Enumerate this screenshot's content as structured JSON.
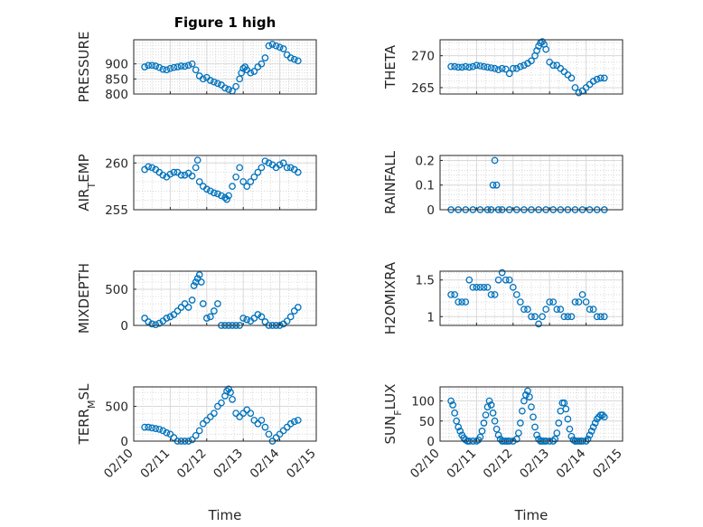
{
  "title": "Figure 1 high",
  "x_label": "Time",
  "x_tick_labels": [
    "02/10",
    "02/11",
    "02/12",
    "02/13",
    "02/14",
    "02/15"
  ],
  "marker_color": "#0072BD",
  "chart_data": [
    {
      "type": "scatter",
      "ylabel": "PRESSURE",
      "ylim": [
        800,
        980
      ],
      "yticks": [
        800,
        850,
        900
      ],
      "x": [
        0.3,
        0.4,
        0.5,
        0.6,
        0.7,
        0.8,
        0.9,
        1.0,
        1.1,
        1.2,
        1.3,
        1.4,
        1.5,
        1.6,
        1.7,
        1.8,
        1.9,
        2.0,
        2.1,
        2.2,
        2.3,
        2.4,
        2.5,
        2.6,
        2.7,
        2.8,
        2.9,
        2.95,
        3.0,
        3.05,
        3.1,
        3.2,
        3.3,
        3.4,
        3.5,
        3.6,
        3.7,
        3.8,
        3.9,
        4.0,
        4.1,
        4.2,
        4.3,
        4.4,
        4.5
      ],
      "values": [
        890,
        895,
        895,
        893,
        888,
        882,
        880,
        885,
        888,
        890,
        893,
        892,
        895,
        900,
        880,
        860,
        850,
        855,
        845,
        840,
        835,
        830,
        820,
        815,
        810,
        825,
        850,
        870,
        885,
        890,
        880,
        870,
        875,
        890,
        900,
        920,
        960,
        965,
        960,
        955,
        950,
        930,
        920,
        915,
        910
      ]
    },
    {
      "type": "scatter",
      "ylabel": "THETA",
      "ylim": [
        264,
        272.5
      ],
      "yticks": [
        265,
        270
      ],
      "x": [
        0.3,
        0.4,
        0.5,
        0.6,
        0.7,
        0.8,
        0.9,
        1.0,
        1.1,
        1.2,
        1.3,
        1.4,
        1.5,
        1.6,
        1.7,
        1.8,
        1.9,
        2.0,
        2.1,
        2.2,
        2.3,
        2.4,
        2.5,
        2.6,
        2.65,
        2.7,
        2.75,
        2.8,
        2.85,
        2.9,
        3.0,
        3.1,
        3.2,
        3.3,
        3.4,
        3.5,
        3.6,
        3.7,
        3.8,
        3.9,
        4.0,
        4.1,
        4.2,
        4.3,
        4.4,
        4.5
      ],
      "values": [
        268.3,
        268.3,
        268.2,
        268.2,
        268.3,
        268.2,
        268.3,
        268.5,
        268.4,
        268.3,
        268.2,
        268.1,
        268.0,
        267.8,
        268.0,
        267.9,
        267.2,
        268.0,
        268.0,
        268.3,
        268.5,
        268.8,
        269.2,
        270.0,
        270.8,
        271.5,
        272.0,
        272.2,
        271.8,
        271.0,
        269.0,
        268.5,
        268.5,
        268.0,
        267.5,
        267.0,
        266.5,
        265.0,
        264.2,
        264.5,
        265.0,
        265.5,
        266.0,
        266.3,
        266.5,
        266.5
      ]
    },
    {
      "type": "scatter",
      "ylabel": "AIR_TEMP",
      "ylim": [
        255,
        260.8
      ],
      "yticks": [
        255,
        260
      ],
      "x": [
        0.3,
        0.4,
        0.5,
        0.6,
        0.7,
        0.8,
        0.9,
        1.0,
        1.1,
        1.2,
        1.3,
        1.4,
        1.5,
        1.6,
        1.7,
        1.75,
        1.8,
        1.9,
        2.0,
        2.1,
        2.2,
        2.3,
        2.4,
        2.5,
        2.55,
        2.6,
        2.7,
        2.8,
        2.9,
        3.0,
        3.1,
        3.2,
        3.3,
        3.4,
        3.5,
        3.6,
        3.7,
        3.8,
        3.9,
        4.0,
        4.1,
        4.2,
        4.3,
        4.4,
        4.5
      ],
      "values": [
        259.3,
        259.6,
        259.5,
        259.3,
        259.0,
        258.7,
        258.5,
        258.8,
        259.0,
        259.0,
        258.7,
        258.7,
        258.9,
        258.6,
        259.5,
        260.3,
        258.0,
        257.5,
        257.2,
        257.0,
        256.8,
        256.7,
        256.5,
        256.3,
        256.1,
        256.5,
        257.5,
        258.5,
        259.5,
        258.0,
        257.5,
        258.0,
        258.5,
        259.0,
        259.5,
        260.2,
        260.0,
        259.8,
        259.5,
        259.8,
        260.0,
        259.5,
        259.5,
        259.3,
        259.0
      ]
    },
    {
      "type": "scatter",
      "ylabel": "RAINFALL",
      "ylim": [
        0,
        0.22
      ],
      "yticks": [
        0,
        0.1,
        0.2
      ],
      "x": [
        0.3,
        0.5,
        0.7,
        0.9,
        1.1,
        1.3,
        1.4,
        1.45,
        1.5,
        1.55,
        1.6,
        1.7,
        1.9,
        2.1,
        2.3,
        2.5,
        2.7,
        2.9,
        3.1,
        3.3,
        3.5,
        3.7,
        3.9,
        4.1,
        4.3,
        4.5
      ],
      "values": [
        0,
        0,
        0,
        0,
        0,
        0,
        0,
        0.1,
        0.2,
        0.1,
        0,
        0,
        0,
        0,
        0,
        0,
        0,
        0,
        0,
        0,
        0,
        0,
        0,
        0,
        0,
        0
      ]
    },
    {
      "type": "scatter",
      "ylabel": "MIXDEPTH",
      "ylim": [
        0,
        750
      ],
      "yticks": [
        0,
        500
      ],
      "x": [
        0.3,
        0.4,
        0.5,
        0.6,
        0.7,
        0.8,
        0.9,
        1.0,
        1.1,
        1.2,
        1.3,
        1.4,
        1.5,
        1.6,
        1.65,
        1.7,
        1.75,
        1.8,
        1.85,
        1.9,
        2.0,
        2.1,
        2.2,
        2.3,
        2.4,
        2.5,
        2.6,
        2.7,
        2.8,
        2.9,
        3.0,
        3.1,
        3.2,
        3.3,
        3.4,
        3.5,
        3.6,
        3.7,
        3.8,
        3.9,
        4.0,
        4.1,
        4.2,
        4.3,
        4.4,
        4.5
      ],
      "values": [
        100,
        50,
        20,
        10,
        30,
        60,
        100,
        120,
        150,
        200,
        250,
        300,
        250,
        350,
        550,
        600,
        650,
        700,
        600,
        300,
        100,
        120,
        200,
        300,
        0,
        0,
        0,
        0,
        0,
        0,
        100,
        80,
        60,
        100,
        150,
        120,
        50,
        0,
        0,
        0,
        0,
        20,
        60,
        120,
        200,
        250
      ]
    },
    {
      "type": "scatter",
      "ylabel": "H2OMIXRA",
      "ylim": [
        0.88,
        1.62
      ],
      "yticks": [
        1,
        1.5
      ],
      "x": [
        0.3,
        0.4,
        0.5,
        0.6,
        0.7,
        0.8,
        0.9,
        1.0,
        1.1,
        1.2,
        1.3,
        1.4,
        1.5,
        1.6,
        1.7,
        1.8,
        1.9,
        2.0,
        2.1,
        2.2,
        2.3,
        2.4,
        2.5,
        2.6,
        2.7,
        2.8,
        2.9,
        3.0,
        3.1,
        3.2,
        3.3,
        3.4,
        3.5,
        3.6,
        3.7,
        3.8,
        3.9,
        4.0,
        4.1,
        4.2,
        4.3,
        4.4,
        4.5
      ],
      "values": [
        1.3,
        1.3,
        1.2,
        1.2,
        1.2,
        1.5,
        1.4,
        1.4,
        1.4,
        1.4,
        1.4,
        1.3,
        1.3,
        1.5,
        1.6,
        1.5,
        1.5,
        1.4,
        1.3,
        1.2,
        1.1,
        1.1,
        1.0,
        1.0,
        0.9,
        1.0,
        1.1,
        1.2,
        1.2,
        1.1,
        1.1,
        1.0,
        1.0,
        1.0,
        1.2,
        1.2,
        1.3,
        1.2,
        1.1,
        1.1,
        1.0,
        1.0,
        1.0
      ]
    },
    {
      "type": "scatter",
      "ylabel": "TERR_MSL",
      "ylim": [
        0,
        780
      ],
      "yticks": [
        0,
        500
      ],
      "x": [
        0.3,
        0.4,
        0.5,
        0.6,
        0.7,
        0.8,
        0.9,
        1.0,
        1.1,
        1.2,
        1.3,
        1.4,
        1.5,
        1.6,
        1.7,
        1.8,
        1.9,
        2.0,
        2.1,
        2.2,
        2.3,
        2.4,
        2.5,
        2.55,
        2.6,
        2.65,
        2.7,
        2.8,
        2.9,
        3.0,
        3.1,
        3.2,
        3.3,
        3.4,
        3.5,
        3.6,
        3.7,
        3.8,
        3.9,
        4.0,
        4.1,
        4.2,
        4.3,
        4.4,
        4.5
      ],
      "values": [
        200,
        200,
        190,
        180,
        170,
        150,
        120,
        100,
        50,
        0,
        0,
        0,
        0,
        20,
        80,
        150,
        250,
        300,
        350,
        400,
        500,
        550,
        650,
        720,
        750,
        700,
        600,
        400,
        350,
        400,
        450,
        400,
        300,
        250,
        300,
        200,
        100,
        0,
        50,
        100,
        150,
        200,
        250,
        280,
        300
      ]
    },
    {
      "type": "scatter",
      "ylabel": "SUN_FLUX",
      "ylim": [
        0,
        135
      ],
      "yticks": [
        0,
        50,
        100
      ],
      "x": [
        0.3,
        0.35,
        0.4,
        0.45,
        0.5,
        0.55,
        0.6,
        0.65,
        0.7,
        0.75,
        0.8,
        0.9,
        1.0,
        1.05,
        1.1,
        1.15,
        1.2,
        1.25,
        1.3,
        1.35,
        1.4,
        1.45,
        1.5,
        1.55,
        1.6,
        1.65,
        1.7,
        1.75,
        1.8,
        1.85,
        1.9,
        2.0,
        2.1,
        2.15,
        2.2,
        2.25,
        2.3,
        2.35,
        2.4,
        2.45,
        2.5,
        2.55,
        2.6,
        2.65,
        2.7,
        2.75,
        2.8,
        2.85,
        2.9,
        3.0,
        3.1,
        3.15,
        3.2,
        3.25,
        3.3,
        3.35,
        3.4,
        3.45,
        3.5,
        3.55,
        3.6,
        3.65,
        3.7,
        3.75,
        3.8,
        3.85,
        3.9,
        4.0,
        4.05,
        4.1,
        4.15,
        4.2,
        4.25,
        4.3,
        4.35,
        4.4,
        4.45,
        4.5
      ],
      "values": [
        100,
        90,
        70,
        50,
        35,
        25,
        15,
        8,
        3,
        0,
        0,
        0,
        0,
        3,
        10,
        25,
        45,
        65,
        85,
        100,
        90,
        70,
        50,
        30,
        15,
        5,
        0,
        0,
        0,
        0,
        0,
        0,
        5,
        20,
        45,
        75,
        100,
        115,
        125,
        110,
        85,
        60,
        35,
        15,
        5,
        0,
        0,
        0,
        0,
        0,
        0,
        5,
        20,
        45,
        75,
        95,
        95,
        80,
        55,
        30,
        12,
        3,
        0,
        0,
        0,
        0,
        0,
        0,
        5,
        15,
        25,
        35,
        45,
        55,
        60,
        65,
        65,
        60
      ]
    }
  ]
}
